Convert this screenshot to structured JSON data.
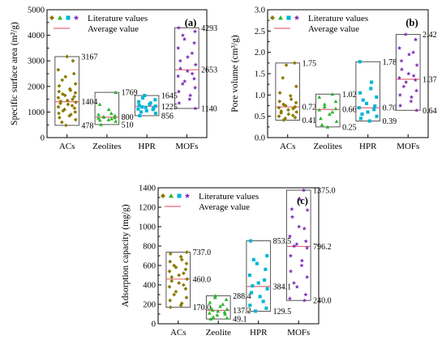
{
  "chart_data": [
    {
      "type": "scatter",
      "panel_label": "(a)",
      "ylabel": "Specific surface area (m²/g)",
      "ylim": [
        0,
        5000
      ],
      "yticks": [
        0,
        1000,
        2000,
        3000,
        4000,
        5000
      ],
      "categories": [
        "ACs",
        "Zeolites",
        "HPR",
        "MOFs"
      ],
      "legend": {
        "placement": "top-left",
        "entries": [
          "Literature values",
          "Average value"
        ]
      },
      "ranges": [
        {
          "category": "ACs",
          "min": 478,
          "avg": 1404,
          "max": 3167,
          "min_label": "478",
          "avg_label": "1404",
          "max_label": "3167"
        },
        {
          "category": "Zeolites",
          "min": 510,
          "avg": 800,
          "max": 1769,
          "min_label": "510",
          "avg_label": "800",
          "max_label": "1769"
        },
        {
          "category": "HPR",
          "min": 856,
          "avg": 1225,
          "max": 1645,
          "min_label": "856",
          "avg_label": "1225",
          "max_label": "1645"
        },
        {
          "category": "MOFs",
          "min": 1140,
          "avg": 2653,
          "max": 4293,
          "min_label": "1140",
          "avg_label": "2653",
          "max_label": "4293"
        }
      ],
      "series": [
        {
          "category": "ACs",
          "marker": "diamond",
          "color": "#8B7A00",
          "values": [
            3167,
            3000,
            2650,
            2500,
            2380,
            2250,
            2100,
            2020,
            1900,
            1850,
            1800,
            1750,
            1700,
            1650,
            1600,
            1560,
            1500,
            1450,
            1420,
            1380,
            1340,
            1300,
            1250,
            1200,
            1150,
            1100,
            1050,
            1000,
            950,
            900,
            850,
            780,
            700,
            600,
            478
          ]
        },
        {
          "category": "Zeolites",
          "marker": "triangle",
          "color": "#2DB52D",
          "values": [
            1769,
            1300,
            1100,
            950,
            900,
            860,
            820,
            800,
            780,
            760,
            740,
            700,
            680,
            640,
            510
          ]
        },
        {
          "category": "HPR",
          "marker": "square",
          "color": "#00B5D5",
          "values": [
            1645,
            1550,
            1480,
            1400,
            1350,
            1300,
            1260,
            1230,
            1200,
            1180,
            1150,
            1120,
            1100,
            1050,
            1000,
            950,
            856
          ]
        },
        {
          "category": "MOFs",
          "marker": "star",
          "color": "#7B2FB5",
          "values": [
            4293,
            4150,
            4000,
            3850,
            3700,
            3500,
            3300,
            3150,
            3000,
            2850,
            2700,
            2600,
            2500,
            2400,
            2300,
            2200,
            2100,
            1950,
            1800,
            1650,
            1500,
            1350,
            1140
          ]
        }
      ]
    },
    {
      "type": "scatter",
      "panel_label": "(b)",
      "ylabel": "Pore volume (cm³/g)",
      "ylim": [
        0,
        3.0
      ],
      "yticks": [
        0.0,
        0.5,
        1.0,
        1.5,
        2.0,
        2.5,
        3.0
      ],
      "categories": [
        "ACs",
        "Zeolites",
        "HPR",
        "MOFs"
      ],
      "legend": {
        "placement": "top-left",
        "entries": [
          "Literature values",
          "Average value"
        ]
      },
      "ranges": [
        {
          "category": "ACs",
          "min": 0.41,
          "avg": 0.72,
          "max": 1.75,
          "min_label": "0.41",
          "avg_label": "0.72",
          "max_label": "1.75"
        },
        {
          "category": "Zeolites",
          "min": 0.25,
          "avg": 0.66,
          "max": 1.02,
          "min_label": "0.25",
          "avg_label": "0.66",
          "max_label": "1.02"
        },
        {
          "category": "HPR",
          "min": 0.39,
          "avg": 0.7,
          "max": 1.78,
          "min_label": "0.39",
          "avg_label": "0.70",
          "max_label": "1.78"
        },
        {
          "category": "MOFs",
          "min": 0.64,
          "avg": 1.37,
          "max": 2.42,
          "min_label": "0.64",
          "avg_label": "1.37",
          "max_label": "2.42"
        }
      ],
      "series": [
        {
          "category": "ACs",
          "marker": "diamond",
          "color": "#8B7A00",
          "values": [
            1.75,
            1.7,
            1.4,
            1.2,
            1.05,
            0.98,
            0.9,
            0.85,
            0.82,
            0.78,
            0.75,
            0.72,
            0.7,
            0.68,
            0.65,
            0.62,
            0.6,
            0.58,
            0.55,
            0.52,
            0.5,
            0.47,
            0.45,
            0.41
          ]
        },
        {
          "category": "Zeolites",
          "marker": "triangle",
          "color": "#2DB52D",
          "values": [
            1.02,
            0.95,
            0.85,
            0.78,
            0.72,
            0.68,
            0.65,
            0.6,
            0.55,
            0.45,
            0.38,
            0.3,
            0.25
          ]
        },
        {
          "category": "HPR",
          "marker": "square",
          "color": "#00B5D5",
          "values": [
            1.78,
            1.3,
            1.15,
            1.05,
            0.95,
            0.88,
            0.8,
            0.74,
            0.7,
            0.66,
            0.6,
            0.55,
            0.5,
            0.45,
            0.39
          ]
        },
        {
          "category": "MOFs",
          "marker": "star",
          "color": "#7B2FB5",
          "values": [
            2.42,
            2.3,
            2.1,
            2.0,
            1.95,
            1.8,
            1.7,
            1.6,
            1.5,
            1.45,
            1.4,
            1.35,
            1.3,
            1.2,
            1.1,
            1.0,
            0.95,
            0.85,
            0.75,
            0.64
          ]
        }
      ]
    },
    {
      "type": "scatter",
      "panel_label": "(c)",
      "ylabel": "Adsorption capacity (mg/g)",
      "ylim": [
        0,
        1400
      ],
      "yticks": [
        0,
        200,
        400,
        600,
        800,
        1000,
        1200,
        1400
      ],
      "categories": [
        "ACs",
        "Zeolite",
        "HPR",
        "MOFs"
      ],
      "legend": {
        "placement": "top-left",
        "entries": [
          "Literature values",
          "Average value"
        ]
      },
      "ranges": [
        {
          "category": "ACs",
          "min": 170.0,
          "avg": 460.0,
          "max": 737.0,
          "min_label": "170.0",
          "avg_label": "460.0",
          "max_label": "737.0"
        },
        {
          "category": "Zeolite",
          "min": 49.1,
          "avg": 137.2,
          "max": 288.4,
          "min_label": "49.1",
          "avg_label": "137.2",
          "max_label": "288.4"
        },
        {
          "category": "HPR",
          "min": 129.5,
          "avg": 384.1,
          "max": 853.5,
          "min_label": "129.5",
          "avg_label": "384.1",
          "max_label": "853.5"
        },
        {
          "category": "MOFs",
          "min": 240.0,
          "avg": 796.2,
          "max": 1375.0,
          "min_label": "240.0",
          "avg_label": "796.2",
          "max_label": "1375.0"
        }
      ],
      "series": [
        {
          "category": "ACs",
          "marker": "diamond",
          "color": "#8B7A00",
          "values": [
            737,
            720,
            690,
            660,
            640,
            620,
            600,
            580,
            560,
            540,
            520,
            500,
            480,
            460,
            440,
            420,
            400,
            380,
            360,
            330,
            300,
            270,
            240,
            210,
            190,
            170
          ]
        },
        {
          "category": "Zeolite",
          "marker": "triangle",
          "color": "#2DB52D",
          "values": [
            288,
            270,
            250,
            220,
            200,
            180,
            160,
            150,
            140,
            130,
            120,
            110,
            100,
            90,
            70,
            60,
            49
          ]
        },
        {
          "category": "HPR",
          "marker": "square",
          "color": "#00B5D5",
          "values": [
            853,
            700,
            660,
            620,
            560,
            500,
            450,
            420,
            390,
            360,
            320,
            280,
            230,
            190,
            160,
            130
          ]
        },
        {
          "category": "MOFs",
          "marker": "star",
          "color": "#7B2FB5",
          "values": [
            1375,
            1280,
            1180,
            1170,
            1100,
            1000,
            980,
            900,
            850,
            820,
            800,
            780,
            700,
            650,
            600,
            540,
            480,
            420,
            380,
            300,
            260,
            240
          ]
        }
      ]
    }
  ]
}
